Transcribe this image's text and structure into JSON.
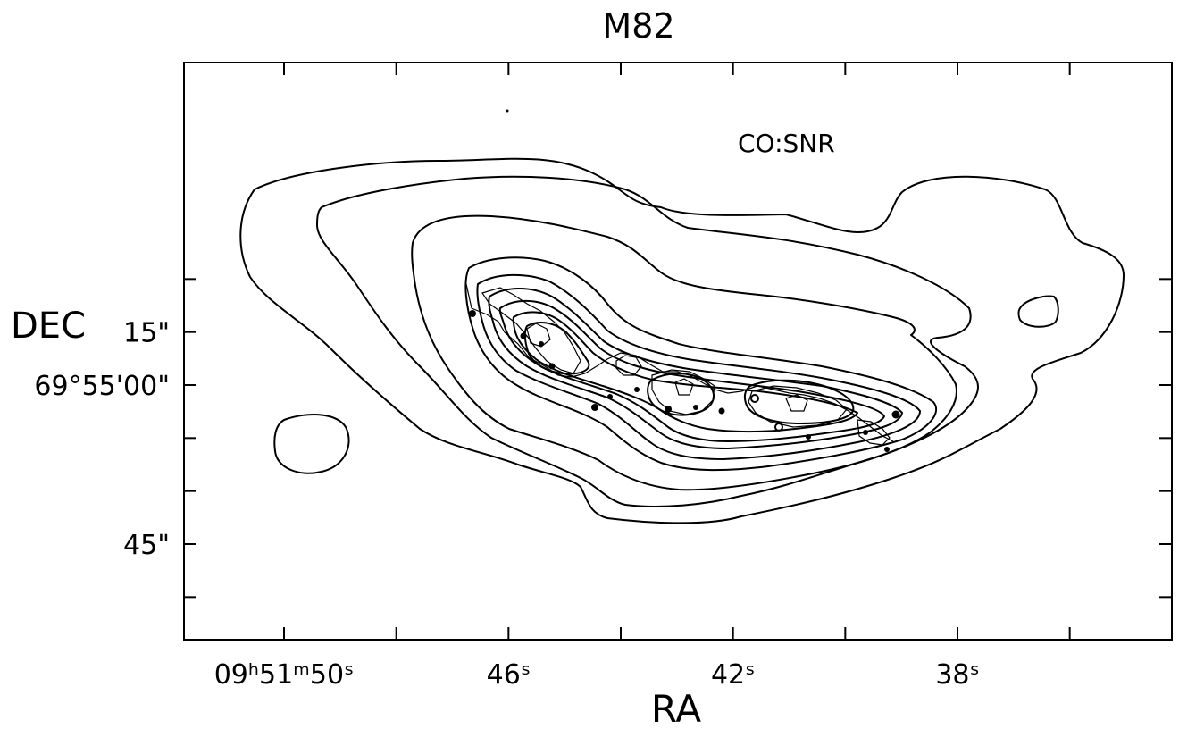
{
  "chart_data": {
    "type": "contour",
    "title": "M82",
    "annotation": "CO:SNR",
    "xlabel": "RA",
    "ylabel": "DEC",
    "x_tick_labels": [
      {
        "value": 50,
        "text": "09ʰ51ᵐ50ˢ"
      },
      {
        "value": 46,
        "text": "46ˢ"
      },
      {
        "value": 42,
        "text": "42ˢ"
      },
      {
        "value": 38,
        "text": "38ˢ"
      }
    ],
    "y_tick_labels": [
      {
        "value": 15,
        "text": "15\""
      },
      {
        "value": 0,
        "text": "69°55'00\""
      },
      {
        "value": -45,
        "text": "45\""
      }
    ],
    "x_ticks_seconds": [
      50,
      48,
      46,
      44,
      42,
      40,
      38,
      36
    ],
    "y_ticks_arcsec": [
      30,
      15,
      0,
      -15,
      -30,
      -45,
      -60
    ],
    "xlim_seconds": [
      51.75,
      34.2
    ],
    "ylim_arcsec": [
      -67,
      30
    ],
    "x_axis_reversed": true,
    "grid": false,
    "line_color": "#000000",
    "background": "#ffffff"
  }
}
